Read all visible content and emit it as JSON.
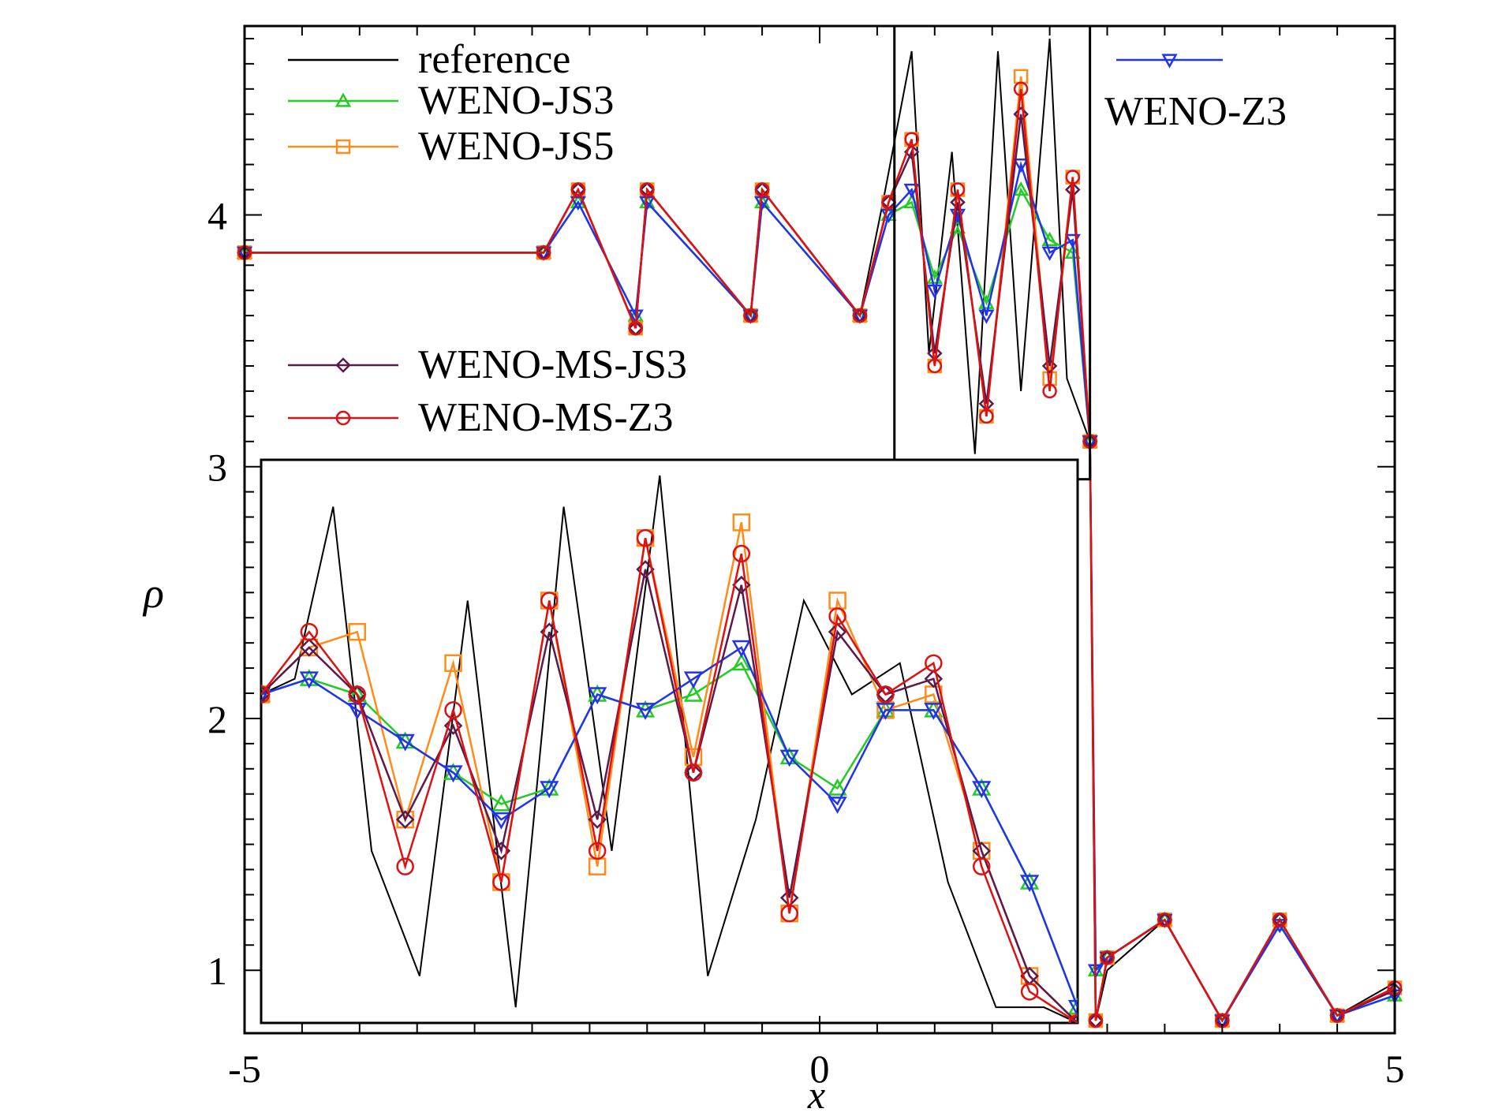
{
  "chart_data": {
    "type": "line",
    "title": "",
    "xlabel": "x",
    "ylabel": "ρ",
    "xlim": [
      -5,
      5
    ],
    "ylim": [
      0.75,
      4.75
    ],
    "xticks": [
      "-5",
      "0",
      "5"
    ],
    "xtick_values": [
      -5,
      0,
      5
    ],
    "yticks": [
      "1",
      "2",
      "3",
      "4"
    ],
    "ytick_values": [
      1,
      2,
      3,
      4
    ],
    "grid": false,
    "legend": [
      {
        "name": "reference",
        "color": "#000000",
        "marker": "none"
      },
      {
        "name": "WENO-JS3",
        "color": "#22cc22",
        "marker": "triangle-up"
      },
      {
        "name": "WENO-JS5",
        "color": "#ff8c1a",
        "marker": "square"
      },
      {
        "name": "WENO-Z3",
        "color": "#2233ee",
        "marker": "triangle-down"
      },
      {
        "name": "WENO-MS-JS3",
        "color": "#5a1a4a",
        "marker": "diamond"
      },
      {
        "name": "WENO-MS-Z3",
        "color": "#dd1111",
        "marker": "circle"
      }
    ],
    "series": [
      {
        "name": "reference",
        "color": "#000000",
        "marker": "none",
        "x": [
          -5.0,
          -2.4,
          -2.1,
          -1.6,
          -1.5,
          -0.6,
          -0.5,
          0.35,
          0.55,
          0.8,
          0.95,
          1.15,
          1.35,
          1.55,
          1.75,
          2.0,
          2.15,
          2.35,
          2.4,
          2.5,
          3.0,
          3.5,
          4.0,
          4.5,
          5.0
        ],
        "y": [
          3.85,
          3.85,
          4.1,
          3.55,
          4.1,
          3.6,
          4.1,
          3.6,
          4.05,
          4.65,
          3.45,
          4.25,
          3.05,
          4.65,
          3.3,
          4.7,
          3.35,
          3.1,
          0.8,
          1.0,
          1.2,
          0.8,
          1.2,
          0.82,
          0.95
        ]
      },
      {
        "name": "WENO-JS3",
        "color": "#22cc22",
        "marker": "triangle-up",
        "x": [
          -5.0,
          -2.4,
          -2.1,
          -1.6,
          -1.5,
          -0.6,
          -0.5,
          0.35,
          0.6,
          0.8,
          1.0,
          1.2,
          1.45,
          1.75,
          2.0,
          2.2,
          2.35,
          2.4,
          2.5,
          3.0,
          3.5,
          4.0,
          4.5,
          5.0
        ],
        "y": [
          3.85,
          3.85,
          4.05,
          3.6,
          4.05,
          3.6,
          4.05,
          3.6,
          4.0,
          4.05,
          3.75,
          3.95,
          3.65,
          4.1,
          3.9,
          3.85,
          3.1,
          1.0,
          1.05,
          1.2,
          0.8,
          1.18,
          0.82,
          0.9
        ]
      },
      {
        "name": "WENO-JS5",
        "color": "#ff8c1a",
        "marker": "square",
        "x": [
          -5.0,
          -2.4,
          -2.1,
          -1.6,
          -1.5,
          -0.6,
          -0.5,
          0.35,
          0.6,
          0.8,
          1.0,
          1.2,
          1.45,
          1.75,
          2.0,
          2.2,
          2.35,
          2.4,
          2.5,
          3.0,
          3.5,
          4.0,
          4.5,
          5.0
        ],
        "y": [
          3.85,
          3.85,
          4.1,
          3.55,
          4.1,
          3.6,
          4.1,
          3.6,
          4.05,
          4.3,
          3.4,
          4.1,
          3.2,
          4.55,
          3.35,
          4.15,
          3.1,
          0.8,
          1.05,
          1.2,
          0.8,
          1.2,
          0.82,
          0.93
        ]
      },
      {
        "name": "WENO-Z3",
        "color": "#2233ee",
        "marker": "triangle-down",
        "x": [
          -5.0,
          -2.4,
          -2.1,
          -1.6,
          -1.5,
          -0.6,
          -0.5,
          0.35,
          0.6,
          0.8,
          1.0,
          1.2,
          1.45,
          1.75,
          2.0,
          2.2,
          2.35,
          2.4,
          2.5,
          3.0,
          3.5,
          4.0,
          4.5,
          5.0
        ],
        "y": [
          3.85,
          3.85,
          4.05,
          3.6,
          4.05,
          3.6,
          4.05,
          3.6,
          4.0,
          4.1,
          3.7,
          4.0,
          3.6,
          4.2,
          3.85,
          3.9,
          3.1,
          1.0,
          1.05,
          1.2,
          0.8,
          1.18,
          0.82,
          0.9
        ]
      },
      {
        "name": "WENO-MS-JS3",
        "color": "#5a1a4a",
        "marker": "diamond",
        "x": [
          -5.0,
          -2.4,
          -2.1,
          -1.6,
          -1.5,
          -0.6,
          -0.5,
          0.35,
          0.6,
          0.8,
          1.0,
          1.2,
          1.45,
          1.75,
          2.0,
          2.2,
          2.35,
          2.4,
          2.5,
          3.0,
          3.5,
          4.0,
          4.5,
          5.0
        ],
        "y": [
          3.85,
          3.85,
          4.1,
          3.55,
          4.1,
          3.6,
          4.1,
          3.6,
          4.05,
          4.25,
          3.45,
          4.05,
          3.25,
          4.4,
          3.4,
          4.1,
          3.1,
          0.8,
          1.05,
          1.2,
          0.8,
          1.2,
          0.82,
          0.92
        ]
      },
      {
        "name": "WENO-MS-Z3",
        "color": "#dd1111",
        "marker": "circle",
        "x": [
          -5.0,
          -2.4,
          -2.1,
          -1.6,
          -1.5,
          -0.6,
          -0.5,
          0.35,
          0.6,
          0.8,
          1.0,
          1.2,
          1.45,
          1.75,
          2.0,
          2.2,
          2.35,
          2.4,
          2.5,
          3.0,
          3.5,
          4.0,
          4.5,
          5.0
        ],
        "y": [
          3.85,
          3.85,
          4.1,
          3.55,
          4.1,
          3.6,
          4.1,
          3.6,
          4.05,
          4.3,
          3.4,
          4.1,
          3.2,
          4.5,
          3.3,
          4.15,
          3.1,
          0.8,
          1.05,
          1.2,
          0.8,
          1.2,
          0.82,
          0.93
        ]
      }
    ],
    "inset": {
      "xlim": [
        0.65,
        2.35
      ],
      "ylim": [
        2.95,
        4.75
      ],
      "ticks_shown": false,
      "series": [
        {
          "name": "reference",
          "x": [
            0.65,
            0.72,
            0.8,
            0.88,
            0.98,
            1.08,
            1.18,
            1.28,
            1.38,
            1.48,
            1.58,
            1.68,
            1.78,
            1.88,
            1.98,
            2.08,
            2.18,
            2.28,
            2.35
          ],
          "y": [
            4.0,
            4.05,
            4.6,
            3.5,
            3.1,
            4.3,
            3.0,
            4.6,
            3.5,
            4.7,
            3.1,
            3.6,
            4.3,
            4.0,
            4.1,
            3.4,
            3.0,
            3.0,
            2.95
          ]
        },
        {
          "name": "WENO-JS3",
          "x": [
            0.65,
            0.75,
            0.85,
            0.95,
            1.05,
            1.15,
            1.25,
            1.35,
            1.45,
            1.55,
            1.65,
            1.75,
            1.85,
            1.95,
            2.05,
            2.15,
            2.25,
            2.35
          ],
          "y": [
            4.0,
            4.05,
            4.0,
            3.85,
            3.75,
            3.65,
            3.7,
            4.0,
            3.95,
            4.0,
            4.1,
            3.8,
            3.7,
            3.95,
            3.95,
            3.7,
            3.4,
            3.0
          ]
        },
        {
          "name": "WENO-JS5",
          "x": [
            0.65,
            0.75,
            0.85,
            0.95,
            1.05,
            1.15,
            1.25,
            1.35,
            1.45,
            1.55,
            1.65,
            1.75,
            1.85,
            1.95,
            2.05,
            2.15,
            2.25,
            2.35
          ],
          "y": [
            4.0,
            4.15,
            4.2,
            3.6,
            4.1,
            3.4,
            4.3,
            3.45,
            4.5,
            3.8,
            4.55,
            3.3,
            4.3,
            3.95,
            4.0,
            3.5,
            3.1,
            2.95
          ]
        },
        {
          "name": "WENO-Z3",
          "x": [
            0.65,
            0.75,
            0.85,
            0.95,
            1.05,
            1.15,
            1.25,
            1.35,
            1.45,
            1.55,
            1.65,
            1.75,
            1.85,
            1.95,
            2.05,
            2.15,
            2.25,
            2.35
          ],
          "y": [
            4.0,
            4.05,
            3.95,
            3.85,
            3.75,
            3.6,
            3.7,
            4.0,
            3.95,
            4.05,
            4.15,
            3.8,
            3.65,
            3.95,
            3.95,
            3.7,
            3.4,
            3.0
          ]
        },
        {
          "name": "WENO-MS-JS3",
          "x": [
            0.65,
            0.75,
            0.85,
            0.95,
            1.05,
            1.15,
            1.25,
            1.35,
            1.45,
            1.55,
            1.65,
            1.75,
            1.85,
            1.95,
            2.05,
            2.15,
            2.25,
            2.35
          ],
          "y": [
            4.0,
            4.15,
            4.0,
            3.6,
            3.9,
            3.5,
            4.2,
            3.6,
            4.4,
            3.75,
            4.35,
            3.35,
            4.2,
            4.0,
            4.05,
            3.5,
            3.1,
            2.95
          ]
        },
        {
          "name": "WENO-MS-Z3",
          "x": [
            0.65,
            0.75,
            0.85,
            0.95,
            1.05,
            1.15,
            1.25,
            1.35,
            1.45,
            1.55,
            1.65,
            1.75,
            1.85,
            1.95,
            2.05,
            2.15,
            2.25,
            2.35
          ],
          "y": [
            4.0,
            4.2,
            4.0,
            3.45,
            3.95,
            3.4,
            4.3,
            3.5,
            4.5,
            3.75,
            4.45,
            3.3,
            4.25,
            4.0,
            4.1,
            3.45,
            3.05,
            2.95
          ]
        }
      ]
    }
  }
}
